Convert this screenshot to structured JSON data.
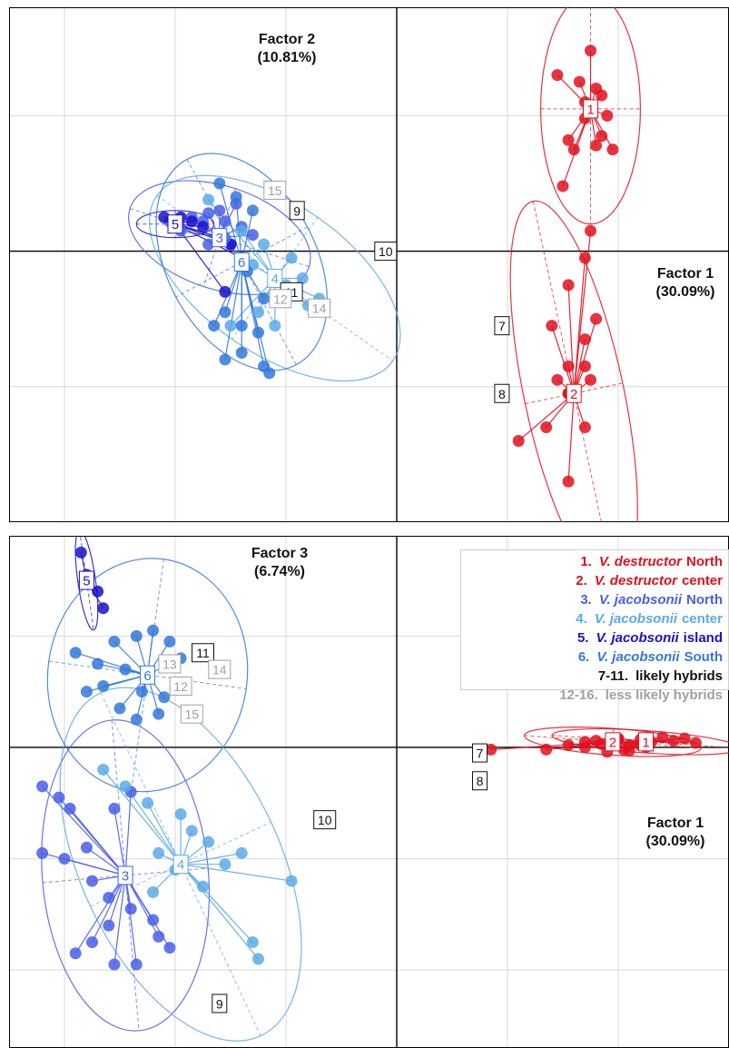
{
  "colors": {
    "vd_north": "#e0101e",
    "vd_center": "#e0101e",
    "vj_north": "#4a5ee8",
    "vj_center": "#5aaae8",
    "vj_island": "#1a10c8",
    "vj_south": "#3378d8",
    "hybrid_likely": "#111111",
    "hybrid_less": "#a0a0a0",
    "grid": "#d9d9d9",
    "axis": "#000000"
  },
  "chart_data": [
    {
      "type": "scatter",
      "title": "",
      "xlabel": "Factor 1\n(30.09%)",
      "ylabel": "Factor 2\n(10.81%)",
      "xlim": [
        -3.5,
        3.0
      ],
      "ylim": [
        -2.0,
        1.8
      ],
      "grid": true,
      "groups": [
        {
          "id": "1",
          "color_key": "vd_north",
          "center": [
            1.75,
            1.05
          ],
          "ellipse": {
            "rx": 0.45,
            "ry": 0.85,
            "angle": 0
          },
          "points": [
            [
              1.75,
              1.48
            ],
            [
              1.65,
              1.25
            ],
            [
              1.45,
              1.3
            ],
            [
              1.8,
              1.2
            ],
            [
              1.9,
              1.0
            ],
            [
              1.7,
              0.98
            ],
            [
              1.55,
              0.82
            ],
            [
              1.85,
              0.85
            ],
            [
              1.95,
              0.75
            ],
            [
              1.6,
              0.75
            ],
            [
              1.8,
              0.78
            ],
            [
              1.5,
              0.48
            ],
            [
              1.7,
              1.1
            ],
            [
              1.85,
              1.15
            ]
          ]
        },
        {
          "id": "2",
          "color_key": "vd_center",
          "center": [
            1.6,
            -1.05
          ],
          "ellipse": {
            "rx": 0.45,
            "ry": 1.45,
            "angle": -12
          },
          "points": [
            [
              1.75,
              0.15
            ],
            [
              1.7,
              -0.05
            ],
            [
              1.55,
              -0.25
            ],
            [
              1.8,
              -0.5
            ],
            [
              1.4,
              -0.55
            ],
            [
              1.7,
              -0.65
            ],
            [
              1.7,
              -0.85
            ],
            [
              1.75,
              -0.95
            ],
            [
              1.55,
              -0.85
            ],
            [
              1.45,
              -0.95
            ],
            [
              1.55,
              -1.05
            ],
            [
              1.55,
              -1.05
            ],
            [
              1.35,
              -1.3
            ],
            [
              1.7,
              -1.3
            ],
            [
              1.1,
              -1.4
            ],
            [
              1.55,
              -1.7
            ]
          ]
        },
        {
          "id": "3",
          "color_key": "vj_north",
          "center": [
            -1.6,
            0.1
          ],
          "ellipse": {
            "rx": 0.85,
            "ry": 0.38,
            "angle": 18
          },
          "points": [
            [
              -2.05,
              0.22
            ],
            [
              -1.85,
              0.25
            ],
            [
              -1.7,
              0.28
            ],
            [
              -1.55,
              0.22
            ],
            [
              -1.4,
              0.18
            ],
            [
              -1.3,
              0.12
            ],
            [
              -1.5,
              0.05
            ],
            [
              -1.7,
              0.05
            ],
            [
              -1.95,
              0.15
            ],
            [
              -1.6,
              0.3
            ],
            [
              -1.45,
              0.35
            ],
            [
              -1.75,
              0.22
            ]
          ]
        },
        {
          "id": "4",
          "color_key": "vj_center",
          "center": [
            -1.1,
            -0.2
          ],
          "ellipse": {
            "rx": 1.3,
            "ry": 0.55,
            "angle": 35
          },
          "points": [
            [
              -1.7,
              0.38
            ],
            [
              -1.4,
              0.15
            ],
            [
              -1.2,
              0.05
            ],
            [
              -0.95,
              -0.05
            ],
            [
              -1.0,
              -0.25
            ],
            [
              -0.8,
              -0.4
            ],
            [
              -1.25,
              -0.45
            ],
            [
              -1.5,
              -0.55
            ],
            [
              -0.7,
              -0.35
            ],
            [
              -1.1,
              -0.55
            ],
            [
              -0.85,
              -0.2
            ],
            [
              -1.3,
              -0.1
            ]
          ]
        },
        {
          "id": "5",
          "color_key": "vj_island",
          "center": [
            -2.0,
            0.2
          ],
          "ellipse": {
            "rx": 0.35,
            "ry": 0.1,
            "angle": 0
          },
          "points": [
            [
              -2.1,
              0.25
            ],
            [
              -1.95,
              0.25
            ],
            [
              -1.85,
              0.22
            ],
            [
              -1.75,
              0.18
            ],
            [
              -1.6,
              0.1
            ],
            [
              -1.5,
              0.05
            ],
            [
              -1.4,
              -0.05
            ],
            [
              -1.55,
              -0.3
            ]
          ]
        },
        {
          "id": "6",
          "color_key": "vj_south",
          "center": [
            -1.4,
            -0.08
          ],
          "ellipse": {
            "rx": 1.05,
            "ry": 0.55,
            "angle": 62
          },
          "points": [
            [
              -1.6,
              0.5
            ],
            [
              -1.45,
              0.4
            ],
            [
              -1.3,
              0.3
            ],
            [
              -1.55,
              0.1
            ],
            [
              -1.35,
              -0.15
            ],
            [
              -1.2,
              -0.35
            ],
            [
              -1.55,
              -0.45
            ],
            [
              -1.4,
              -0.55
            ],
            [
              -1.65,
              -0.55
            ],
            [
              -1.4,
              -0.75
            ],
            [
              -1.55,
              -0.8
            ],
            [
              -1.2,
              -0.85
            ],
            [
              -1.15,
              -0.9
            ],
            [
              -1.25,
              -0.6
            ]
          ]
        }
      ],
      "labels": [
        {
          "text": "7",
          "x": 0.95,
          "y": -0.55,
          "style": "hybrid_likely"
        },
        {
          "text": "8",
          "x": 0.95,
          "y": -1.05,
          "style": "hybrid_likely"
        },
        {
          "text": "9",
          "x": -0.9,
          "y": 0.3,
          "style": "hybrid_likely"
        },
        {
          "text": "10",
          "x": -0.1,
          "y": 0.0,
          "style": "hybrid_likely"
        },
        {
          "text": "11",
          "x": -0.95,
          "y": -0.3,
          "style": "hybrid_likely"
        },
        {
          "text": "12",
          "x": -1.05,
          "y": -0.35,
          "style": "hybrid_less"
        },
        {
          "text": "14",
          "x": -0.7,
          "y": -0.42,
          "style": "hybrid_less"
        },
        {
          "text": "15",
          "x": -1.1,
          "y": 0.45,
          "style": "hybrid_less"
        }
      ]
    },
    {
      "type": "scatter",
      "title": "",
      "xlabel": "Factor 1\n(30.09%)",
      "ylabel": "Factor 3\n(6.74%)",
      "xlim": [
        -3.5,
        3.0
      ],
      "ylim": [
        -2.7,
        1.9
      ],
      "grid": true,
      "groups": [
        {
          "id": "1",
          "color_key": "vd_north",
          "center": [
            2.25,
            0.05
          ],
          "ellipse": {
            "rx": 0.85,
            "ry": 0.1,
            "angle": 4
          },
          "points": [
            [
              1.7,
              0.05
            ],
            [
              1.85,
              0.03
            ],
            [
              2.0,
              0.08
            ],
            [
              2.1,
              0.02
            ],
            [
              2.2,
              0.07
            ],
            [
              2.3,
              0.05
            ],
            [
              2.4,
              0.09
            ],
            [
              2.5,
              0.06
            ],
            [
              2.6,
              0.08
            ],
            [
              2.7,
              0.04
            ],
            [
              2.05,
              -0.02
            ],
            [
              2.25,
              0.0
            ]
          ]
        },
        {
          "id": "2",
          "color_key": "vd_center",
          "center": [
            1.95,
            0.05
          ],
          "ellipse": {
            "rx": 0.8,
            "ry": 0.12,
            "angle": 4
          },
          "points": [
            [
              1.35,
              -0.02
            ],
            [
              1.55,
              0.02
            ],
            [
              1.7,
              0.0
            ],
            [
              1.8,
              0.06
            ],
            [
              1.9,
              -0.04
            ],
            [
              2.0,
              0.07
            ],
            [
              2.1,
              -0.03
            ],
            [
              2.2,
              0.02
            ],
            [
              0.85,
              -0.02
            ]
          ]
        },
        {
          "id": "3",
          "color_key": "vj_north",
          "center": [
            -2.45,
            -1.15
          ],
          "ellipse": {
            "rx": 0.75,
            "ry": 1.4,
            "angle": -5
          },
          "points": [
            [
              -3.2,
              -0.35
            ],
            [
              -3.05,
              -0.45
            ],
            [
              -2.95,
              -0.55
            ],
            [
              -3.2,
              -0.95
            ],
            [
              -3.0,
              -1.0
            ],
            [
              -2.8,
              -0.9
            ],
            [
              -2.75,
              -1.2
            ],
            [
              -2.6,
              -1.35
            ],
            [
              -2.4,
              -1.45
            ],
            [
              -2.2,
              -1.55
            ],
            [
              -2.6,
              -1.6
            ],
            [
              -2.75,
              -1.75
            ],
            [
              -2.9,
              -1.85
            ],
            [
              -2.55,
              -1.95
            ],
            [
              -2.35,
              -1.95
            ],
            [
              -2.15,
              -1.7
            ],
            [
              -2.05,
              -1.8
            ],
            [
              -2.4,
              -0.4
            ],
            [
              -2.55,
              -0.55
            ]
          ]
        },
        {
          "id": "4",
          "color_key": "vj_center",
          "center": [
            -1.95,
            -1.05
          ],
          "ellipse": {
            "rx": 0.9,
            "ry": 1.7,
            "angle": -25
          },
          "points": [
            [
              -2.65,
              -0.2
            ],
            [
              -2.45,
              -0.35
            ],
            [
              -2.25,
              -0.5
            ],
            [
              -1.95,
              -0.6
            ],
            [
              -1.85,
              -0.75
            ],
            [
              -1.7,
              -0.85
            ],
            [
              -2.15,
              -0.95
            ],
            [
              -2.0,
              -1.1
            ],
            [
              -1.75,
              -1.25
            ],
            [
              -1.55,
              -1.05
            ],
            [
              -2.2,
              -1.3
            ],
            [
              -1.3,
              -1.75
            ],
            [
              -1.25,
              -1.9
            ],
            [
              -0.95,
              -1.2
            ],
            [
              -1.4,
              -0.95
            ]
          ]
        },
        {
          "id": "5",
          "color_key": "vj_island",
          "center": [
            -2.8,
            1.5
          ],
          "ellipse": {
            "rx": 0.08,
            "ry": 0.45,
            "angle": -8
          },
          "points": [
            [
              -2.85,
              1.75
            ],
            [
              -2.8,
              1.55
            ],
            [
              -2.7,
              1.4
            ],
            [
              -2.65,
              1.25
            ]
          ]
        },
        {
          "id": "6",
          "color_key": "vj_south",
          "center": [
            -2.25,
            0.65
          ],
          "ellipse": {
            "rx": 0.9,
            "ry": 1.05,
            "angle": 8
          },
          "points": [
            [
              -2.9,
              0.85
            ],
            [
              -2.7,
              0.75
            ],
            [
              -2.55,
              0.95
            ],
            [
              -2.35,
              1.0
            ],
            [
              -2.2,
              1.05
            ],
            [
              -2.05,
              0.95
            ],
            [
              -1.95,
              0.8
            ],
            [
              -2.45,
              0.7
            ],
            [
              -2.65,
              0.55
            ],
            [
              -2.3,
              0.5
            ],
            [
              -2.1,
              0.45
            ],
            [
              -2.5,
              0.35
            ],
            [
              -2.8,
              0.5
            ],
            [
              -2.35,
              0.25
            ],
            [
              -2.15,
              0.3
            ]
          ]
        }
      ],
      "labels": [
        {
          "text": "7",
          "x": 0.75,
          "y": -0.05,
          "style": "hybrid_likely"
        },
        {
          "text": "8",
          "x": 0.75,
          "y": -0.3,
          "style": "hybrid_likely"
        },
        {
          "text": "9",
          "x": -1.6,
          "y": -2.3,
          "style": "hybrid_likely"
        },
        {
          "text": "10",
          "x": -0.65,
          "y": -0.65,
          "style": "hybrid_likely"
        },
        {
          "text": "11",
          "x": -1.75,
          "y": 0.85,
          "style": "hybrid_likely"
        },
        {
          "text": "12",
          "x": -1.95,
          "y": 0.55,
          "style": "hybrid_less"
        },
        {
          "text": "13",
          "x": -2.05,
          "y": 0.75,
          "style": "hybrid_less"
        },
        {
          "text": "14",
          "x": -1.6,
          "y": 0.7,
          "style": "hybrid_less"
        },
        {
          "text": "15",
          "x": -1.85,
          "y": 0.3,
          "style": "hybrid_less"
        }
      ]
    }
  ],
  "top_panel": {
    "x_axis_title_line1": "Factor 1",
    "x_axis_title_line2": "(30.09%)",
    "y_axis_title_line1": "Factor 2",
    "y_axis_title_line2": "(10.81%)"
  },
  "bottom_panel": {
    "x_axis_title_line1": "Factor 1",
    "x_axis_title_line2": "(30.09%)",
    "y_axis_title_line1": "Factor 3",
    "y_axis_title_line2": "(6.74%)"
  },
  "legend": {
    "items": [
      {
        "num": "1.",
        "species": "V. destructor",
        "region": "North",
        "color_key": "vd_north"
      },
      {
        "num": "2.",
        "species": "V. destructor",
        "region": "center",
        "color_key": "vd_center"
      },
      {
        "num": "3.",
        "species": "V. jacobsonii",
        "region": "North",
        "color_key": "vj_north"
      },
      {
        "num": "4.",
        "species": "V. jacobsonii",
        "region": "center",
        "color_key": "vj_center"
      },
      {
        "num": "5.",
        "species": "V. jacobsonii",
        "region": "island",
        "color_key": "vj_island"
      },
      {
        "num": "6.",
        "species": "V. jacobsonii",
        "region": "South",
        "color_key": "vj_south"
      },
      {
        "num": "7-11.",
        "species": "",
        "region": "likely hybrids",
        "color_key": "hybrid_likely"
      },
      {
        "num": "12-16.",
        "species": "",
        "region": "less likely hybrids",
        "color_key": "hybrid_less"
      }
    ]
  }
}
